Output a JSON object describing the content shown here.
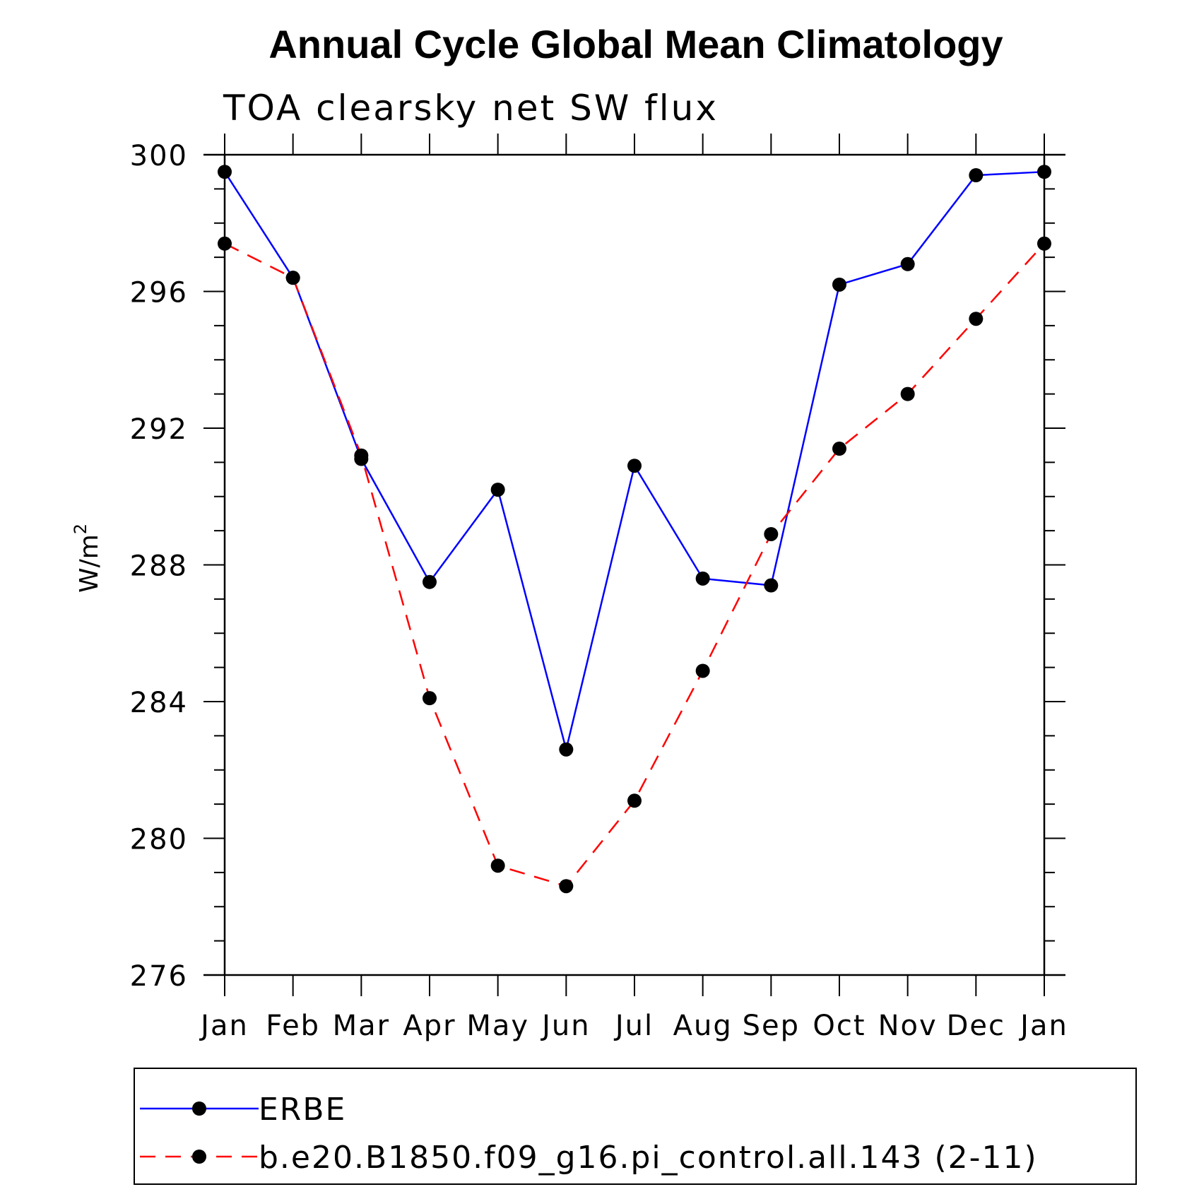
{
  "chart_data": {
    "type": "line",
    "title": "Annual Cycle Global Mean Climatology",
    "subtitle": "TOA clearsky net SW flux",
    "xlabel": "",
    "ylabel": "W/m",
    "ylabel_superscript": "2",
    "categories": [
      "Jan",
      "Feb",
      "Mar",
      "Apr",
      "May",
      "Jun",
      "Jul",
      "Aug",
      "Sep",
      "Oct",
      "Nov",
      "Dec",
      "Jan"
    ],
    "ylim": [
      276,
      300
    ],
    "yticks": [
      276,
      280,
      284,
      288,
      292,
      296,
      300
    ],
    "series": [
      {
        "name": "ERBE",
        "color": "#0000ff",
        "dash": "solid",
        "marker": "filled-circle",
        "values": [
          299.5,
          296.4,
          291.1,
          287.5,
          290.2,
          282.6,
          290.9,
          287.6,
          287.4,
          296.2,
          296.8,
          299.4,
          299.5
        ]
      },
      {
        "name": "b.e20.B1850.f09_g16.pi_control.all.143 (2-11)",
        "color": "#ff0000",
        "dash": "dashed",
        "marker": "filled-circle",
        "values": [
          297.4,
          296.4,
          291.2,
          284.1,
          279.2,
          278.6,
          281.1,
          284.9,
          288.9,
          291.4,
          293.0,
          295.2,
          297.4
        ]
      }
    ],
    "grid": false,
    "legend_position": "bottom"
  }
}
